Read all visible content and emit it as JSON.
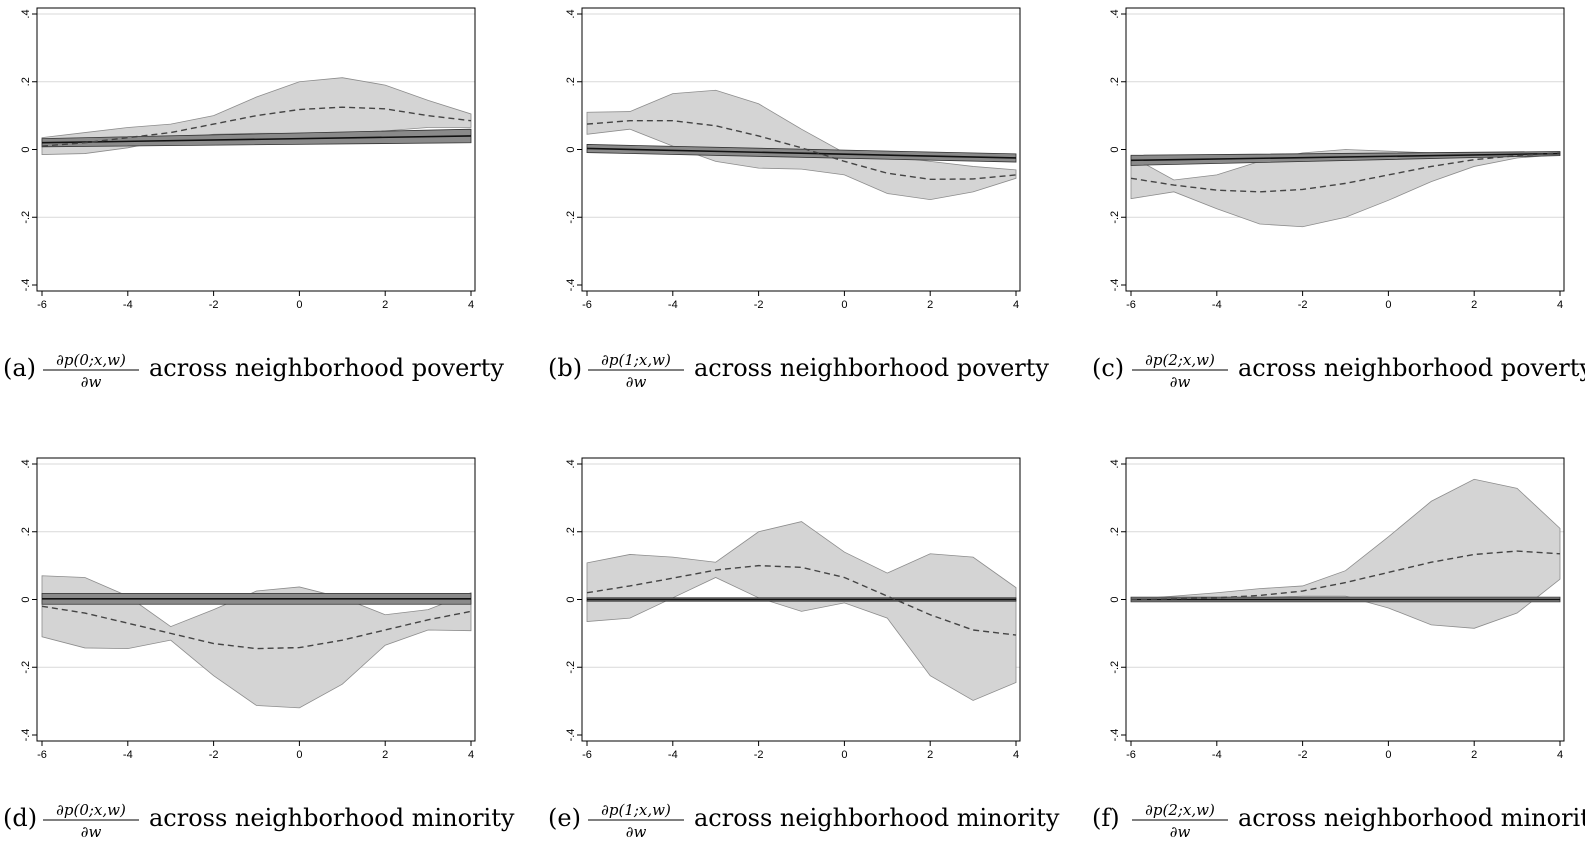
{
  "chart_data": [
    {
      "type": "line",
      "label": "(a)",
      "numerator": "∂p(0;x,w)",
      "denominator": "∂w",
      "suffix": "across neighborhood poverty",
      "x": [
        -6,
        -5,
        -4,
        -3,
        -2,
        -1,
        0,
        1,
        2,
        3,
        4
      ],
      "xticks": [
        "-6",
        "-4",
        "-2",
        "0",
        "2",
        "4"
      ],
      "yticks": [
        "-.4",
        "-.2",
        "0",
        ".2",
        ".4"
      ],
      "xlim": [
        -6,
        4
      ],
      "ylim": [
        -0.4,
        0.4
      ],
      "dashed_mean": [
        0.01,
        0.02,
        0.035,
        0.05,
        0.075,
        0.1,
        0.118,
        0.125,
        0.12,
        0.1,
        0.085
      ],
      "ci_upper": [
        0.035,
        0.05,
        0.065,
        0.075,
        0.1,
        0.155,
        0.2,
        0.212,
        0.19,
        0.145,
        0.105
      ],
      "ci_lower": [
        -0.015,
        -0.012,
        0.005,
        0.03,
        0.045,
        0.048,
        0.048,
        0.05,
        0.055,
        0.065,
        0.065
      ],
      "linear_fit": [
        0.02,
        0.04
      ],
      "linear_band": [
        0.012,
        0.02
      ]
    },
    {
      "type": "line",
      "label": "(b)",
      "numerator": "∂p(1;x,w)",
      "denominator": "∂w",
      "suffix": "across neighborhood poverty",
      "x": [
        -6,
        -5,
        -4,
        -3,
        -2,
        -1,
        0,
        1,
        2,
        3,
        4
      ],
      "xticks": [
        "-6",
        "-4",
        "-2",
        "0",
        "2",
        "4"
      ],
      "yticks": [
        "-.4",
        "-.2",
        "0",
        ".2",
        ".4"
      ],
      "xlim": [
        -6,
        4
      ],
      "ylim": [
        -0.4,
        0.4
      ],
      "dashed_mean": [
        0.075,
        0.085,
        0.085,
        0.07,
        0.04,
        0.005,
        -0.035,
        -0.07,
        -0.088,
        -0.087,
        -0.075
      ],
      "ci_upper": [
        0.11,
        0.112,
        0.165,
        0.175,
        0.135,
        0.06,
        -0.01,
        -0.02,
        -0.035,
        -0.05,
        -0.06
      ],
      "ci_lower": [
        0.045,
        0.06,
        0.01,
        -0.035,
        -0.055,
        -0.058,
        -0.075,
        -0.13,
        -0.148,
        -0.125,
        -0.085
      ],
      "linear_fit": [
        0.003,
        -0.025
      ],
      "linear_band": [
        0.012,
        0.012
      ]
    },
    {
      "type": "line",
      "label": "(c)",
      "numerator": "∂p(2;x,w)",
      "denominator": "∂w",
      "suffix": "across neighborhood poverty",
      "x": [
        -6,
        -5,
        -4,
        -3,
        -2,
        -1,
        0,
        1,
        2,
        3,
        4
      ],
      "xticks": [
        "-6",
        "-4",
        "-2",
        "0",
        "2",
        "4"
      ],
      "yticks": [
        "-.4",
        "-.2",
        "0",
        ".2",
        ".4"
      ],
      "xlim": [
        -6,
        4
      ],
      "ylim": [
        -0.4,
        0.4
      ],
      "dashed_mean": [
        -0.085,
        -0.105,
        -0.12,
        -0.125,
        -0.118,
        -0.1,
        -0.075,
        -0.05,
        -0.03,
        -0.018,
        -0.01
      ],
      "ci_upper": [
        -0.02,
        -0.09,
        -0.075,
        -0.035,
        -0.01,
        0.0,
        -0.005,
        -0.01,
        -0.01,
        -0.01,
        -0.008
      ],
      "ci_lower": [
        -0.145,
        -0.125,
        -0.175,
        -0.22,
        -0.228,
        -0.2,
        -0.15,
        -0.095,
        -0.05,
        -0.025,
        -0.015
      ],
      "linear_fit": [
        -0.032,
        -0.012
      ],
      "linear_band": [
        0.015,
        0.006
      ]
    },
    {
      "type": "line",
      "label": "(d)",
      "numerator": "∂p(0;x,w)",
      "denominator": "∂w",
      "suffix": "across neighborhood minority",
      "x": [
        -6,
        -5,
        -4,
        -3,
        -2,
        -1,
        0,
        1,
        2,
        3,
        4
      ],
      "xticks": [
        "-6",
        "-4",
        "-2",
        "0",
        "2",
        "4"
      ],
      "yticks": [
        "-.4",
        "-.2",
        "0",
        ".2",
        ".4"
      ],
      "xlim": [
        -6,
        4
      ],
      "ylim": [
        -0.4,
        0.4
      ],
      "dashed_mean": [
        -0.02,
        -0.04,
        -0.07,
        -0.1,
        -0.13,
        -0.145,
        -0.142,
        -0.12,
        -0.09,
        -0.06,
        -0.035
      ],
      "ci_upper": [
        0.07,
        0.065,
        0.01,
        -0.08,
        -0.03,
        0.025,
        0.037,
        0.005,
        -0.045,
        -0.03,
        0.02
      ],
      "ci_lower": [
        -0.11,
        -0.143,
        -0.145,
        -0.12,
        -0.225,
        -0.313,
        -0.32,
        -0.25,
        -0.135,
        -0.09,
        -0.092
      ],
      "linear_fit": [
        0.002,
        0.002
      ],
      "linear_band": [
        0.016,
        0.016
      ]
    },
    {
      "type": "line",
      "label": "(e)",
      "numerator": "∂p(1;x,w)",
      "denominator": "∂w",
      "suffix": "across neighborhood minority",
      "x": [
        -6,
        -5,
        -4,
        -3,
        -2,
        -1,
        0,
        1,
        2,
        3,
        4
      ],
      "xticks": [
        "-6",
        "-4",
        "-2",
        "0",
        "2",
        "4"
      ],
      "yticks": [
        "-.4",
        "-.2",
        "0",
        ".2",
        ".4"
      ],
      "xlim": [
        -6,
        4
      ],
      "ylim": [
        -0.4,
        0.4
      ],
      "dashed_mean": [
        0.02,
        0.04,
        0.063,
        0.087,
        0.1,
        0.095,
        0.065,
        0.01,
        -0.045,
        -0.09,
        -0.105
      ],
      "ci_upper": [
        0.108,
        0.133,
        0.125,
        0.11,
        0.2,
        0.23,
        0.14,
        0.078,
        0.135,
        0.125,
        0.035
      ],
      "ci_lower": [
        -0.065,
        -0.055,
        0.005,
        0.065,
        0.005,
        -0.035,
        -0.01,
        -0.055,
        -0.225,
        -0.298,
        -0.245
      ],
      "linear_fit": [
        0.0,
        0.0
      ],
      "linear_band": [
        0.005,
        0.005
      ]
    },
    {
      "type": "line",
      "label": "(f)",
      "numerator": "∂p(2;x,w)",
      "denominator": "∂w",
      "suffix": "across neighborhood minority",
      "x": [
        -6,
        -5,
        -4,
        -3,
        -2,
        -1,
        0,
        1,
        2,
        3,
        4
      ],
      "xticks": [
        "-6",
        "-4",
        "-2",
        "0",
        "2",
        "4"
      ],
      "yticks": [
        "-.4",
        "-.2",
        "0",
        ".2",
        ".4"
      ],
      "xlim": [
        -6,
        4
      ],
      "ylim": [
        -0.4,
        0.4
      ],
      "dashed_mean": [
        0.0,
        0.002,
        0.005,
        0.012,
        0.025,
        0.05,
        0.08,
        0.11,
        0.133,
        0.143,
        0.135
      ],
      "ci_upper": [
        0.0,
        0.01,
        0.02,
        0.032,
        0.04,
        0.085,
        0.185,
        0.29,
        0.355,
        0.328,
        0.21
      ],
      "ci_lower": [
        0.0,
        -0.005,
        0.0,
        0.005,
        0.01,
        0.01,
        -0.025,
        -0.075,
        -0.085,
        -0.04,
        0.06
      ],
      "linear_fit": [
        0.0,
        0.0
      ],
      "linear_band": [
        0.007,
        0.007
      ]
    }
  ]
}
